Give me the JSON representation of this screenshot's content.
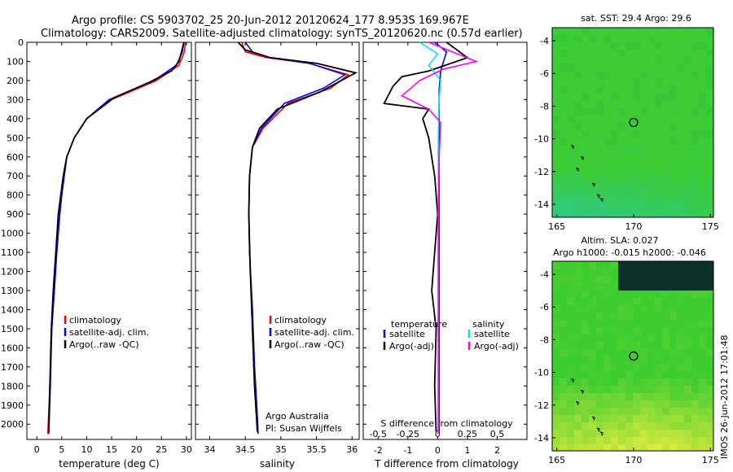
{
  "header": {
    "line1": "Argo profile: CS 5903702_25 20-Jun-2012 20120624_177 8.953S 169.967E",
    "line2": "Climatology: CARS2009. Satellite-adjusted climatology: synTS_20120620.nc (0.57d earlier)"
  },
  "side_note": "IMOS 26-Jun-2012 17:01:48",
  "colors": {
    "climatology": "#ff0000",
    "satellite": "#0000ff",
    "argo": "#000000",
    "temp_diff_sat": "#0000ff",
    "sal_diff_sat": "#00e5ee",
    "sal_diff_argo": "#ff00ff",
    "map_green": "#33cc33",
    "map_teal": "#22c9a0",
    "map_yellow": "#e6ee3c"
  },
  "chart_data": [
    {
      "type": "line",
      "name": "temperature-profile",
      "xlabel": "temperature (deg C)",
      "ylabel": "",
      "xlim": [
        -2,
        31
      ],
      "ylim": [
        2080,
        0
      ],
      "xticks": [
        0,
        5,
        10,
        15,
        20,
        25,
        30
      ],
      "yticks": [
        0,
        100,
        200,
        300,
        400,
        500,
        600,
        700,
        800,
        900,
        1000,
        1100,
        1200,
        1300,
        1400,
        1500,
        1600,
        1700,
        1800,
        1900,
        2000
      ],
      "legend": [
        "climatology",
        "satellite-adj. clim.",
        "Argo(..raw -QC)"
      ],
      "series": [
        {
          "name": "climatology",
          "color": "#ff0000",
          "x": [
            29.8,
            29.6,
            28.5,
            24,
            15,
            10,
            7.5,
            6,
            5.5,
            5,
            4.6,
            4,
            3.5,
            3,
            2.6,
            2.2
          ],
          "y": [
            0,
            50,
            120,
            200,
            300,
            400,
            500,
            600,
            700,
            800,
            900,
            1100,
            1300,
            1500,
            1800,
            2050
          ]
        },
        {
          "name": "satellite-adj. clim.",
          "color": "#0000ff",
          "x": [
            29.5,
            29.2,
            28,
            23.5,
            14.5,
            10,
            7.5,
            6,
            5.5,
            5,
            4.6,
            4,
            3.5,
            3,
            2.7,
            2.4
          ],
          "y": [
            0,
            50,
            120,
            200,
            300,
            400,
            500,
            600,
            700,
            800,
            900,
            1100,
            1300,
            1500,
            1800,
            2050
          ]
        },
        {
          "name": "Argo(..raw -QC)",
          "color": "#000000",
          "x": [
            29.5,
            29,
            28.5,
            27,
            22.5,
            15.5,
            10,
            7.5,
            6,
            5.3,
            4.8,
            4.3,
            3.8,
            3.3,
            2.9,
            2.6,
            2.4
          ],
          "y": [
            0,
            50,
            100,
            150,
            210,
            290,
            400,
            500,
            600,
            700,
            800,
            900,
            1100,
            1300,
            1500,
            1800,
            2040
          ]
        }
      ]
    },
    {
      "type": "line",
      "name": "salinity-profile",
      "xlabel": "salinity",
      "xlim": [
        33.8,
        36.1
      ],
      "ylim": [
        2080,
        0
      ],
      "xticks": [
        34,
        34.5,
        35,
        35.5,
        36
      ],
      "legend": [
        "climatology",
        "satellite-adj. clim.",
        "Argo(..raw -QC)"
      ],
      "annotation": [
        "Argo Australia",
        "PI: Susan Wijffels"
      ],
      "series": [
        {
          "name": "climatology",
          "color": "#ff0000",
          "x": [
            34.45,
            34.5,
            34.8,
            35.4,
            35.95,
            35.7,
            35.1,
            34.75,
            34.6,
            34.56,
            34.55,
            34.56,
            34.6,
            34.63,
            34.66,
            34.68
          ],
          "y": [
            0,
            50,
            80,
            110,
            170,
            240,
            320,
            450,
            550,
            700,
            900,
            1100,
            1400,
            1700,
            1900,
            2050
          ]
        },
        {
          "name": "satellite-adj. clim.",
          "color": "#0000ff",
          "x": [
            34.5,
            34.6,
            34.85,
            35.4,
            35.9,
            35.6,
            35.05,
            34.73,
            34.6,
            34.56,
            34.55,
            34.56,
            34.6,
            34.63,
            34.66,
            34.68
          ],
          "y": [
            0,
            50,
            80,
            110,
            170,
            240,
            320,
            450,
            550,
            700,
            900,
            1100,
            1400,
            1700,
            1900,
            2050
          ]
        },
        {
          "name": "Argo(..raw -QC)",
          "color": "#000000",
          "x": [
            34.4,
            34.5,
            34.85,
            35.5,
            36.05,
            35.85,
            35.55,
            34.95,
            34.7,
            34.6,
            34.56,
            34.55,
            34.57,
            34.6,
            34.63,
            34.67
          ],
          "y": [
            0,
            40,
            80,
            110,
            160,
            200,
            260,
            350,
            450,
            550,
            700,
            900,
            1200,
            1500,
            1800,
            2040
          ]
        }
      ]
    },
    {
      "type": "line",
      "name": "difference-profile",
      "xlabel": "T difference from climatology",
      "xlabel_top": "S difference from climatology",
      "xlim": [
        -2.5,
        3
      ],
      "ylim": [
        2080,
        0
      ],
      "xticks_T": [
        -2,
        -1,
        0,
        1,
        2
      ],
      "xticks_S": [
        -0.5,
        -0.25,
        0,
        0.25,
        0.5
      ],
      "legend_left_title": "temperature",
      "legend_right_title": "salinity",
      "legend": [
        "satellite",
        "Argo(-adj)",
        "satellite",
        "Argo(-adj)"
      ],
      "series": [
        {
          "name": "temperature satellite",
          "color": "#0000ff",
          "x": [
            -0.1,
            0.3,
            0.1,
            0.05,
            0.05,
            0.05,
            0.05,
            0.05,
            0.05,
            0.05
          ],
          "y": [
            0,
            50,
            150,
            250,
            400,
            700,
            1000,
            1400,
            1800,
            2050
          ]
        },
        {
          "name": "temperature Argo(-adj)",
          "color": "#000000",
          "x": [
            0.3,
            1.0,
            -0.3,
            -1.2,
            -1.5,
            -1.8,
            -0.3,
            -0.5,
            -0.3,
            -0.1,
            0.0,
            -0.1,
            -0.2,
            -0.05,
            -0.1,
            -0.05
          ],
          "y": [
            0,
            80,
            150,
            180,
            230,
            320,
            350,
            400,
            500,
            700,
            900,
            1100,
            1300,
            1500,
            1800,
            2040
          ]
        },
        {
          "name": "salinity satellite",
          "color": "#00e5ee",
          "x": [
            -0.6,
            0.0,
            -0.3,
            0.1,
            0.05,
            0.02,
            0.02,
            0.02,
            0.02
          ],
          "y": [
            0,
            60,
            120,
            200,
            300,
            500,
            900,
            1400,
            2050
          ]
        },
        {
          "name": "salinity Argo(-adj)",
          "color": "#ff00ff",
          "x": [
            -0.3,
            1.3,
            0.2,
            -0.6,
            -1.2,
            -0.3,
            0.1,
            0.05,
            0.02,
            0.02
          ],
          "y": [
            0,
            100,
            140,
            200,
            280,
            350,
            420,
            600,
            1000,
            2050
          ]
        }
      ]
    },
    {
      "type": "heatmap",
      "name": "sst-map",
      "title": "sat. SST: 29.4  Argo: 29.6",
      "xticks": [
        165,
        170,
        175
      ],
      "yticks": [
        -4,
        -6,
        -8,
        -10,
        -12,
        -14
      ],
      "xlim": [
        164.7,
        175.2
      ],
      "ylim": [
        -14.8,
        -3.2
      ],
      "marker": {
        "lon": 170,
        "lat": -9
      }
    },
    {
      "type": "heatmap",
      "name": "sla-map",
      "title_line1": "Altim. SLA: 0.027",
      "title_line2": "Argo h1000: -0.015  h2000: -0.046",
      "xticks": [
        165,
        170,
        175
      ],
      "yticks": [
        -4,
        -6,
        -8,
        -10,
        -12,
        -14
      ],
      "xlim": [
        164.7,
        175.2
      ],
      "ylim": [
        -14.8,
        -3.2
      ],
      "marker": {
        "lon": 170,
        "lat": -9
      }
    }
  ]
}
